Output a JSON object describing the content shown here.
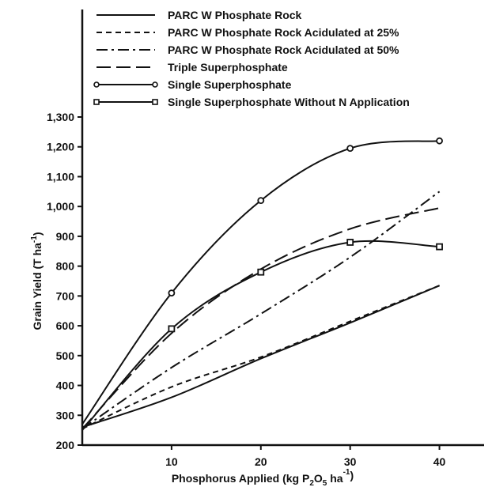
{
  "chart_data": {
    "type": "line",
    "xlabel_parts": [
      "Phosphorus Applied (kg P",
      "2",
      "O",
      "5",
      " ha",
      "-1",
      ")"
    ],
    "ylabel_parts": [
      "Grain Yield (T ha",
      "-1",
      ")"
    ],
    "xlim": [
      0,
      45
    ],
    "ylim": [
      200,
      1300
    ],
    "xticks": [
      10,
      20,
      30,
      40
    ],
    "xtick_labels": [
      "10",
      "20",
      "30",
      "40"
    ],
    "yticks": [
      200,
      300,
      400,
      500,
      600,
      700,
      800,
      900,
      1000,
      1100,
      1200,
      1300
    ],
    "ytick_labels": [
      "200",
      "300",
      "400",
      "500",
      "600",
      "700",
      "800",
      "900",
      "1,000",
      "1,100",
      "1,200",
      "1,300"
    ],
    "grid": false,
    "legend_position": "top",
    "series": [
      {
        "name": "PARC W Phosphate Rock",
        "style": "solid",
        "marker": "none",
        "x": [
          0,
          10,
          20,
          30,
          40
        ],
        "y": [
          260,
          360,
          490,
          610,
          735
        ]
      },
      {
        "name": "PARC W Phosphate Rock Acidulated at 25%",
        "style": "dash",
        "marker": "none",
        "x": [
          0,
          10,
          20,
          30,
          40
        ],
        "y": [
          255,
          395,
          495,
          615,
          735
        ]
      },
      {
        "name": "PARC W Phosphate Rock Acidulated at 50%",
        "style": "dashdot",
        "marker": "none",
        "x": [
          0,
          10,
          20,
          30,
          40
        ],
        "y": [
          255,
          460,
          640,
          830,
          1050
        ]
      },
      {
        "name": "Triple Superphosphate",
        "style": "longdash",
        "marker": "none",
        "x": [
          0,
          10,
          20,
          30,
          40
        ],
        "y": [
          255,
          575,
          790,
          925,
          995
        ]
      },
      {
        "name": "Single Superphosphate",
        "style": "solid",
        "marker": "circle",
        "x": [
          0,
          10,
          20,
          30,
          40
        ],
        "y": [
          270,
          710,
          1020,
          1195,
          1220
        ]
      },
      {
        "name": "Single Superphosphate Without N Application",
        "style": "solid",
        "marker": "square",
        "x": [
          0,
          10,
          20,
          30,
          40
        ],
        "y": [
          250,
          590,
          780,
          880,
          865
        ]
      }
    ]
  }
}
